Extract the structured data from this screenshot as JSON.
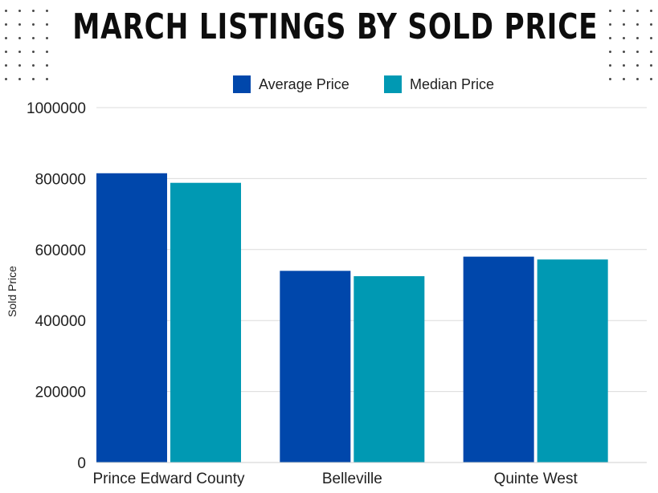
{
  "title": "MARCH LISTINGS BY SOLD PRICE",
  "colors": {
    "average": "#0047ab",
    "median": "#0099b3",
    "grid": "#dcdcdc"
  },
  "chart_data": {
    "type": "bar",
    "title": "MARCH LISTINGS BY SOLD PRICE",
    "categories": [
      "Prince Edward County",
      "Belleville",
      "Quinte West"
    ],
    "series": [
      {
        "name": "Average Price",
        "values": [
          815000,
          540000,
          580000
        ]
      },
      {
        "name": "Median Price",
        "values": [
          788000,
          525000,
          572000
        ]
      }
    ],
    "xlabel": "",
    "ylabel": "Sold Price",
    "ylim": [
      0,
      1000000
    ],
    "yticks": [
      0,
      200000,
      400000,
      600000,
      800000,
      1000000
    ],
    "grid": true,
    "legend": "top-center"
  }
}
